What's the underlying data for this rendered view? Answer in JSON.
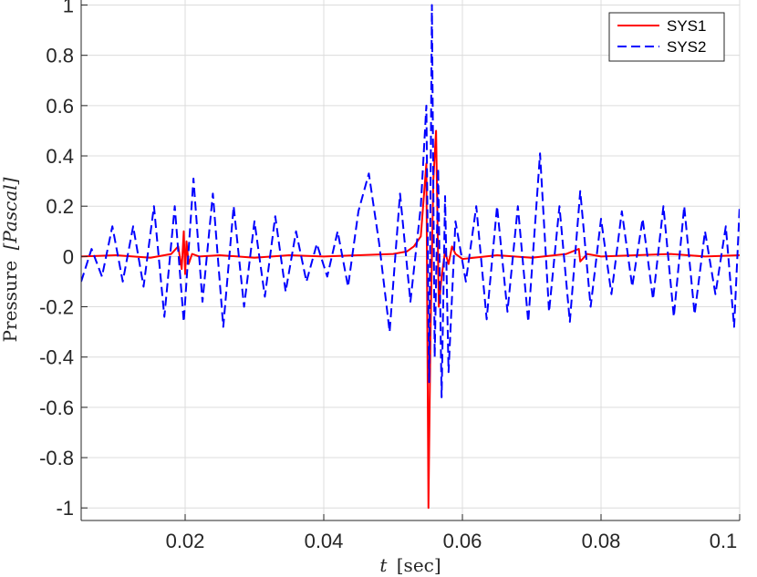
{
  "chart_data": {
    "type": "line",
    "title": "",
    "xlabel_var": "t",
    "xlabel_unit": "[sec]",
    "ylabel_text": "Pressure",
    "ylabel_unit": "[Pascal]",
    "xlim": [
      0.005,
      0.1
    ],
    "ylim": [
      -1.05,
      1.02
    ],
    "x_ticks": [
      0.02,
      0.04,
      0.06,
      0.08,
      0.1
    ],
    "x_tick_labels": [
      "0.02",
      "0.04",
      "0.06",
      "0.08",
      "0.1"
    ],
    "y_ticks": [
      -1,
      -0.8,
      -0.6,
      -0.4,
      -0.2,
      0,
      0.2,
      0.4,
      0.6,
      0.8,
      1
    ],
    "y_tick_labels": [
      "-1",
      "-0.8",
      "-0.6",
      "-0.4",
      "-0.2",
      "0",
      "0.2",
      "0.4",
      "0.6",
      "0.8",
      "1"
    ],
    "grid": true,
    "legend_position": "top-right",
    "series": [
      {
        "name": "SYS1",
        "color": "#ff0000",
        "style": "solid",
        "points": [
          [
            0.005,
            0
          ],
          [
            0.01,
            0.005
          ],
          [
            0.015,
            -0.005
          ],
          [
            0.018,
            0.01
          ],
          [
            0.019,
            0.04
          ],
          [
            0.0195,
            -0.05
          ],
          [
            0.0198,
            0.1
          ],
          [
            0.02,
            -0.07
          ],
          [
            0.0202,
            0.06
          ],
          [
            0.0205,
            -0.03
          ],
          [
            0.021,
            0.01
          ],
          [
            0.022,
            0
          ],
          [
            0.025,
            0.005
          ],
          [
            0.03,
            -0.005
          ],
          [
            0.035,
            0.005
          ],
          [
            0.04,
            0
          ],
          [
            0.045,
            0.005
          ],
          [
            0.05,
            0.01
          ],
          [
            0.052,
            0.02
          ],
          [
            0.053,
            0.04
          ],
          [
            0.054,
            0.08
          ],
          [
            0.0548,
            0.37
          ],
          [
            0.0551,
            -1.0
          ],
          [
            0.0554,
            -0.3
          ],
          [
            0.0558,
            0.3
          ],
          [
            0.0562,
            0.5
          ],
          [
            0.0566,
            -0.2
          ],
          [
            0.057,
            -0.08
          ],
          [
            0.0575,
            0.02
          ],
          [
            0.058,
            -0.03
          ],
          [
            0.0585,
            0.04
          ],
          [
            0.059,
            0.01
          ],
          [
            0.06,
            -0.01
          ],
          [
            0.065,
            0.005
          ],
          [
            0.07,
            -0.005
          ],
          [
            0.075,
            0.01
          ],
          [
            0.0768,
            0.03
          ],
          [
            0.077,
            -0.02
          ],
          [
            0.078,
            0.01
          ],
          [
            0.08,
            0
          ],
          [
            0.085,
            0.005
          ],
          [
            0.09,
            0.01
          ],
          [
            0.095,
            0
          ],
          [
            0.1,
            0.005
          ]
        ]
      },
      {
        "name": "SYS2",
        "color": "#0000ff",
        "style": "dashed",
        "points": [
          [
            0.005,
            -0.1
          ],
          [
            0.0065,
            0.03
          ],
          [
            0.008,
            -0.08
          ],
          [
            0.0095,
            0.12
          ],
          [
            0.011,
            -0.1
          ],
          [
            0.0125,
            0.12
          ],
          [
            0.014,
            -0.12
          ],
          [
            0.0155,
            0.2
          ],
          [
            0.017,
            -0.24
          ],
          [
            0.0185,
            0.2
          ],
          [
            0.0198,
            -0.26
          ],
          [
            0.0212,
            0.31
          ],
          [
            0.0225,
            -0.18
          ],
          [
            0.024,
            0.25
          ],
          [
            0.0255,
            -0.28
          ],
          [
            0.027,
            0.2
          ],
          [
            0.0285,
            -0.2
          ],
          [
            0.03,
            0.14
          ],
          [
            0.0315,
            -0.16
          ],
          [
            0.033,
            0.16
          ],
          [
            0.0345,
            -0.14
          ],
          [
            0.036,
            0.1
          ],
          [
            0.0375,
            -0.1
          ],
          [
            0.039,
            0.05
          ],
          [
            0.0405,
            -0.08
          ],
          [
            0.042,
            0.1
          ],
          [
            0.0435,
            -0.12
          ],
          [
            0.045,
            0.18
          ],
          [
            0.0465,
            0.33
          ],
          [
            0.048,
            0.05
          ],
          [
            0.0495,
            -0.3
          ],
          [
            0.051,
            0.25
          ],
          [
            0.0525,
            -0.18
          ],
          [
            0.054,
            0.2
          ],
          [
            0.0548,
            0.6
          ],
          [
            0.0552,
            -0.5
          ],
          [
            0.0556,
            1.0
          ],
          [
            0.056,
            -0.4
          ],
          [
            0.0565,
            0.35
          ],
          [
            0.057,
            -0.56
          ],
          [
            0.0575,
            0.24
          ],
          [
            0.058,
            -0.46
          ],
          [
            0.059,
            0.14
          ],
          [
            0.0605,
            -0.1
          ],
          [
            0.062,
            0.2
          ],
          [
            0.0635,
            -0.25
          ],
          [
            0.065,
            0.2
          ],
          [
            0.0665,
            -0.22
          ],
          [
            0.068,
            0.2
          ],
          [
            0.0695,
            -0.26
          ],
          [
            0.0712,
            0.41
          ],
          [
            0.0725,
            -0.22
          ],
          [
            0.074,
            0.2
          ],
          [
            0.0755,
            -0.26
          ],
          [
            0.077,
            0.26
          ],
          [
            0.0785,
            -0.2
          ],
          [
            0.08,
            0.15
          ],
          [
            0.0815,
            -0.15
          ],
          [
            0.083,
            0.18
          ],
          [
            0.0845,
            -0.12
          ],
          [
            0.086,
            0.15
          ],
          [
            0.0875,
            -0.17
          ],
          [
            0.089,
            0.2
          ],
          [
            0.0905,
            -0.24
          ],
          [
            0.092,
            0.2
          ],
          [
            0.0935,
            -0.23
          ],
          [
            0.095,
            0.1
          ],
          [
            0.0965,
            -0.15
          ],
          [
            0.098,
            0.12
          ],
          [
            0.0992,
            -0.28
          ],
          [
            0.1,
            0.2
          ]
        ]
      }
    ]
  }
}
